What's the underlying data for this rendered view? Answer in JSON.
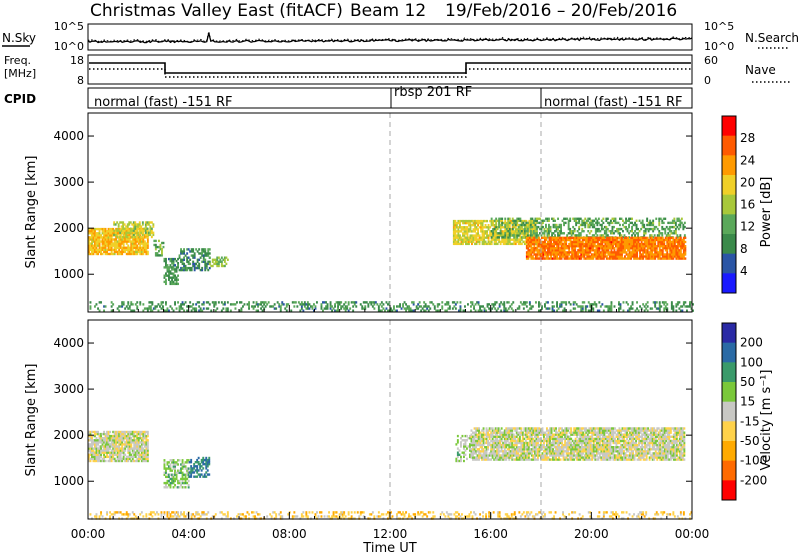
{
  "header": {
    "title": "Christmas Valley East (fitACF)",
    "beam": "Beam 12",
    "date_range": "19/Feb/2016 – 20/Feb/2016"
  },
  "noise_panel": {
    "label": "N.Sky",
    "right_label": "N.Search",
    "left_ticks": [
      "10^5",
      "10^0"
    ],
    "right_ticks": [
      "10^5",
      "10^0"
    ]
  },
  "freq_panel": {
    "label_line1": "Freq.",
    "label_line2": "[MHz]",
    "right_label": "Nave",
    "left_ticks": [
      "18",
      "8"
    ],
    "right_ticks": [
      "60",
      "0"
    ]
  },
  "cpid_panel": {
    "label": "CPID",
    "segments": [
      {
        "label": "normal (fast) -151 RF"
      },
      {
        "label": "rbsp 201 RF"
      },
      {
        "label": "normal (fast) -151 RF"
      }
    ]
  },
  "x_axis": {
    "label": "Time UT",
    "ticks": [
      "00:00",
      "04:00",
      "08:00",
      "12:00",
      "16:00",
      "20:00",
      "00:00"
    ]
  },
  "colors": {
    "power_scale": [
      "#1a1aff",
      "#2a55a5",
      "#3a8a4a",
      "#5aa85a",
      "#a8c83a",
      "#f0d028",
      "#ff9a00",
      "#ff5a00",
      "#ff0000"
    ],
    "velocity_scale": [
      "#ff0000",
      "#ff6a00",
      "#ffaa00",
      "#ffd24a",
      "#c8c8c4",
      "#7ac83a",
      "#3a9a6a",
      "#2a6aa5",
      "#2a2aa5"
    ],
    "ground_scatter": "#c8c8c4"
  },
  "chart_data": [
    {
      "type": "heatmap",
      "title": "Power",
      "ylabel": "Slant Range [km]",
      "xlabel": "",
      "colorbar_label": "Power [dB]",
      "colorbar_ticks": [
        "28",
        "24",
        "20",
        "16",
        "12",
        "8",
        "4"
      ],
      "y_ticks": [
        "4000",
        "3000",
        "2000",
        "1000"
      ],
      "xlim": [
        0,
        24
      ],
      "ylim": [
        180,
        4500
      ],
      "vmin": 0,
      "vmax": 32,
      "regions": [
        {
          "t0": 0.0,
          "t1": 2.4,
          "rc": 1700,
          "rh": 280,
          "v": 21,
          "d": 0.85
        },
        {
          "t0": 1.0,
          "t1": 2.6,
          "rc": 1950,
          "rh": 160,
          "v": 17,
          "d": 0.55
        },
        {
          "t0": 2.6,
          "t1": 3.0,
          "rc": 1550,
          "rh": 160,
          "v": 13,
          "d": 0.45
        },
        {
          "t0": 3.0,
          "t1": 3.6,
          "rc": 1050,
          "rh": 280,
          "v": 10,
          "d": 0.65
        },
        {
          "t0": 3.6,
          "t1": 4.8,
          "rc": 1300,
          "rh": 230,
          "v": 9,
          "d": 0.55
        },
        {
          "t0": 4.8,
          "t1": 5.6,
          "rc": 1270,
          "rh": 110,
          "v": 14,
          "d": 0.5
        },
        {
          "t0": 14.5,
          "t1": 17.8,
          "rc": 1900,
          "rh": 260,
          "v": 18,
          "d": 0.8
        },
        {
          "t0": 16.0,
          "t1": 23.7,
          "rc": 2000,
          "rh": 220,
          "v": 12,
          "d": 0.45
        },
        {
          "t0": 17.4,
          "t1": 23.7,
          "rc": 1550,
          "rh": 230,
          "v": 25,
          "d": 0.9
        },
        {
          "t0": 0.0,
          "t1": 24.0,
          "rc": 300,
          "rh": 110,
          "v": 10,
          "d": 0.35
        }
      ]
    },
    {
      "type": "heatmap",
      "title": "Velocity",
      "ylabel": "Slant Range [km]",
      "xlabel": "Time UT",
      "colorbar_label": "Velocity [m s⁻¹]",
      "colorbar_ticks": [
        "200",
        "100",
        "50",
        "15",
        "-15",
        "-50",
        "-100",
        "-200"
      ],
      "y_ticks": [
        "4000",
        "3000",
        "2000",
        "1000"
      ],
      "xlim": [
        0,
        24
      ],
      "ylim": [
        180,
        4500
      ],
      "vmin": -250,
      "vmax": 250,
      "regions": [
        {
          "t0": 0.0,
          "t1": 2.4,
          "rc": 1750,
          "rh": 330,
          "v": 0,
          "d": 0.85
        },
        {
          "t0": 3.0,
          "t1": 4.0,
          "rc": 1150,
          "rh": 300,
          "v": 55,
          "d": 0.6
        },
        {
          "t0": 4.0,
          "t1": 4.8,
          "rc": 1300,
          "rh": 220,
          "v": 140,
          "d": 0.55
        },
        {
          "t0": 14.6,
          "t1": 15.2,
          "rc": 1700,
          "rh": 280,
          "v": 40,
          "d": 0.45
        },
        {
          "t0": 15.2,
          "t1": 23.7,
          "rc": 1800,
          "rh": 350,
          "v": 0,
          "d": 0.85
        },
        {
          "t0": 0.0,
          "t1": 24.0,
          "rc": 260,
          "rh": 90,
          "v": -60,
          "d": 0.3
        }
      ]
    }
  ]
}
